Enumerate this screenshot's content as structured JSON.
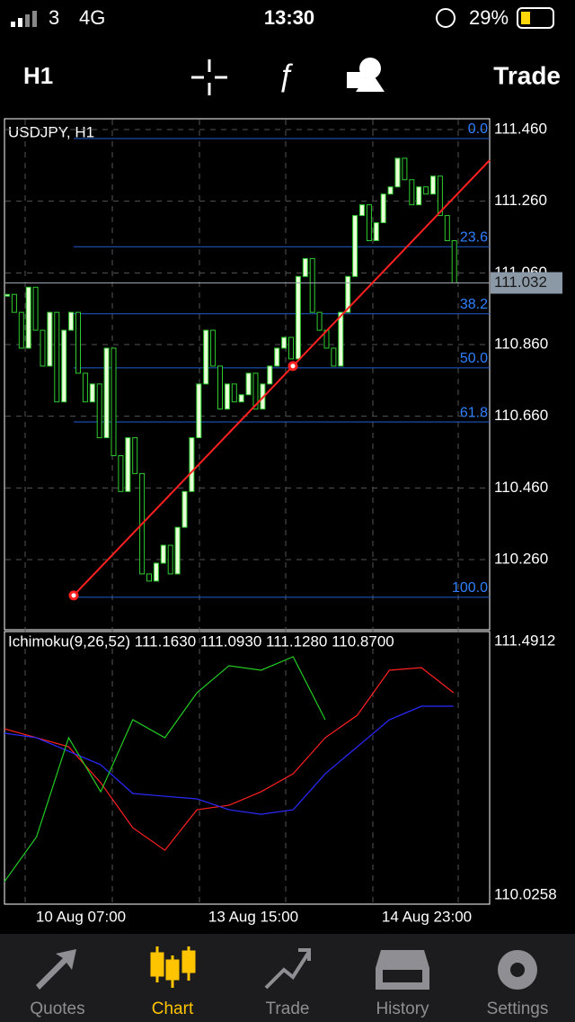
{
  "status_bar": {
    "carrier": "3",
    "network": "4G",
    "time": "13:30",
    "battery": "29%"
  },
  "toolbar": {
    "timeframe": "H1",
    "action": "Trade"
  },
  "chart": {
    "symbol": "USDJPY, H1",
    "price_ticks": [
      {
        "value": 111.46,
        "label": "111.460"
      },
      {
        "value": 111.26,
        "label": "111.260"
      },
      {
        "value": 111.06,
        "label": "111.060"
      },
      {
        "value": 110.86,
        "label": "110.860"
      },
      {
        "value": 110.66,
        "label": "110.660"
      },
      {
        "value": 110.46,
        "label": "110.460"
      },
      {
        "value": 110.26,
        "label": "110.260"
      }
    ],
    "current_price": 111.032,
    "closes": [
      111.0,
      110.95,
      110.85,
      111.02,
      110.9,
      110.8,
      110.95,
      110.7,
      110.9,
      110.95,
      110.78,
      110.7,
      110.75,
      110.6,
      110.85,
      110.55,
      110.45,
      110.6,
      110.5,
      110.22,
      110.2,
      110.25,
      110.3,
      110.22,
      110.35,
      110.45,
      110.6,
      110.75,
      110.9,
      110.8,
      110.68,
      110.75,
      110.7,
      110.72,
      110.78,
      110.68,
      110.75,
      110.8,
      110.85,
      110.88,
      110.82,
      111.05,
      111.1,
      110.95,
      110.9,
      110.85,
      110.8,
      110.95,
      111.05,
      111.22,
      111.25,
      111.15,
      111.2,
      111.28,
      111.3,
      111.38,
      111.32,
      111.25,
      111.3,
      111.28,
      111.33,
      111.22,
      111.15,
      111.032
    ],
    "fib_high": 111.435,
    "fib_low": 110.155,
    "fib_levels": [
      {
        "value": 0,
        "label": "0.0"
      },
      23.6,
      38.2,
      {
        "value": 50,
        "label": "50.0"
      },
      61.8,
      {
        "value": 100,
        "label": "100.0"
      }
    ],
    "trendline": {
      "start": 110.16,
      "end": 110.8
    }
  },
  "indicator": {
    "label": "Ichimoku(9,26,52) 111.1630 111.0930 111.1280 110.8700",
    "ticks": [
      111.4912,
      110.0258
    ],
    "series": [
      {
        "color": "#ff2020",
        "values": [
          110.987,
          110.935,
          110.883,
          110.675,
          110.415,
          110.285,
          110.519,
          110.545,
          110.623,
          110.727,
          110.935,
          111.065,
          111.325,
          111.34,
          111.195
        ]
      },
      {
        "color": "#2a2aff",
        "values": [
          110.961,
          110.935,
          110.857,
          110.779,
          110.613,
          110.597,
          110.582,
          110.519,
          110.493,
          110.519,
          110.727,
          110.883,
          111.039,
          111.117,
          111.117
        ]
      },
      {
        "color": "#22cc22",
        "values": [
          110.104,
          110.363,
          110.935,
          110.623,
          111.039,
          110.935,
          111.195,
          111.351,
          111.325,
          111.403,
          111.039
        ]
      }
    ]
  },
  "x_labels": [
    "10 Aug 07:00",
    "13 Aug 15:00",
    "14 Aug 23:00"
  ],
  "tabs": [
    "Quotes",
    "Chart",
    "Trade",
    "History",
    "Settings"
  ]
}
